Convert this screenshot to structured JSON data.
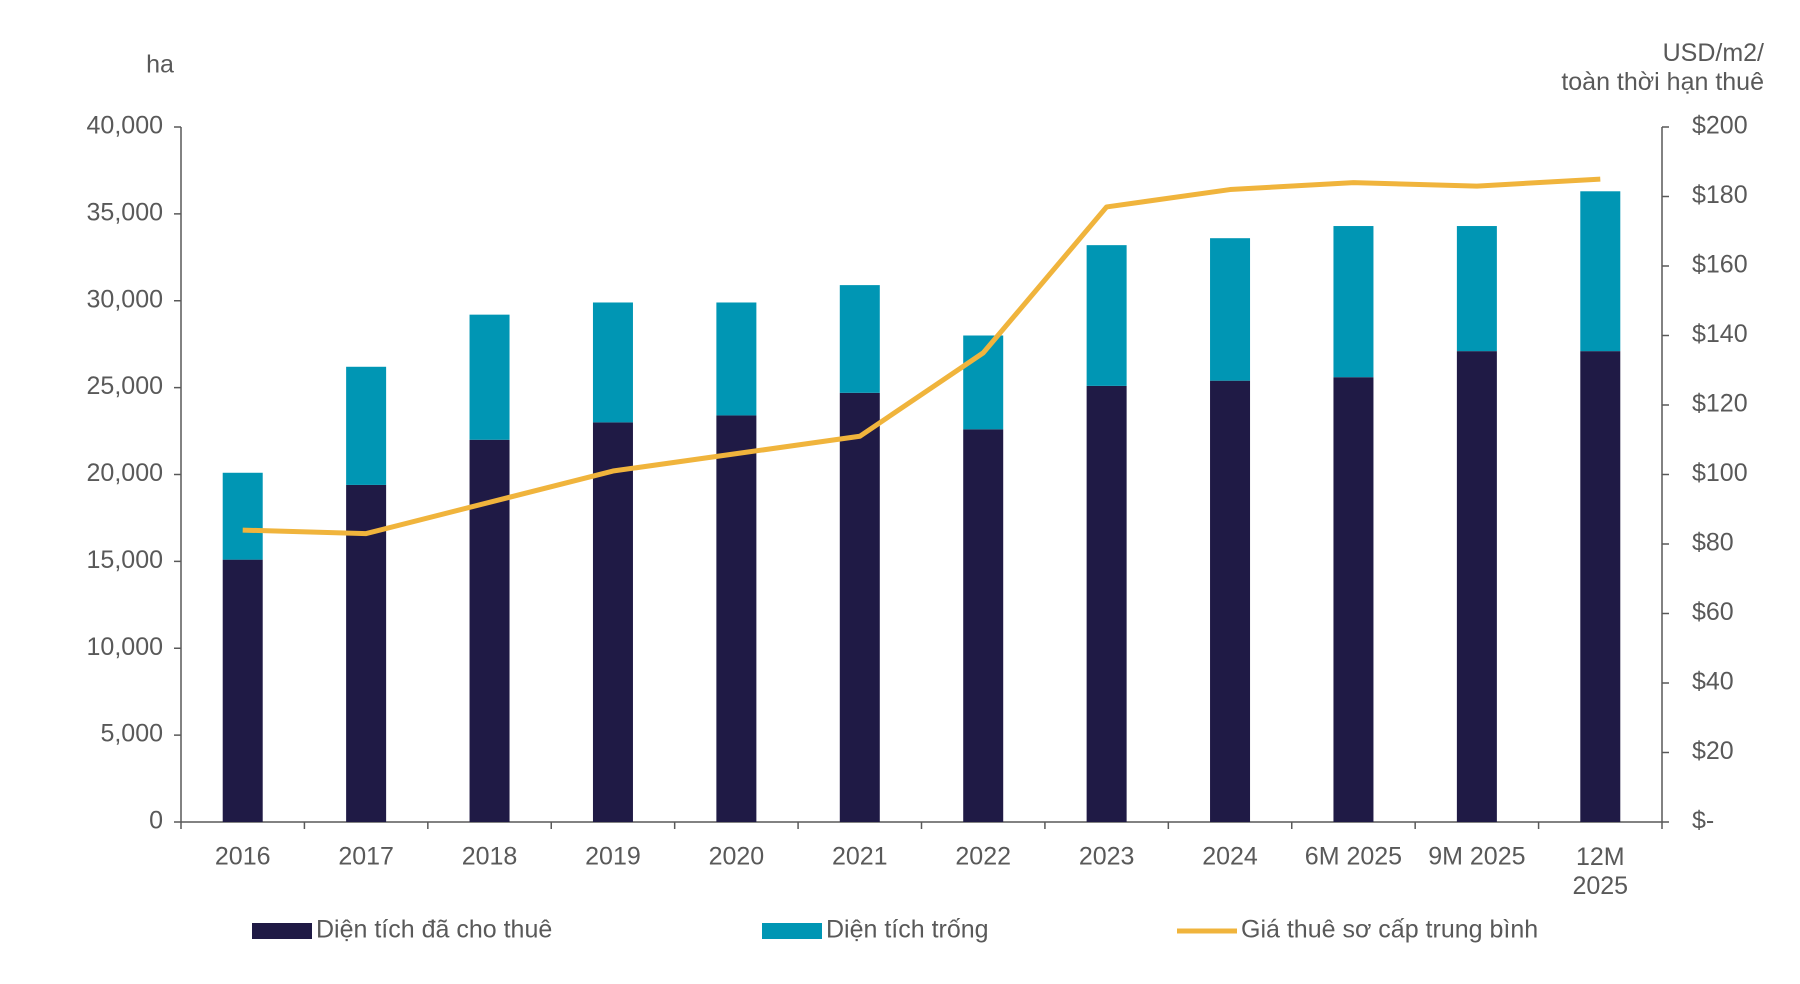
{
  "chart_data": {
    "type": "bar",
    "stacked": true,
    "y_label": "ha",
    "y2_label": "USD/m2/\ntoàn thời hạn thuê",
    "categories": [
      "2016",
      "2017",
      "2018",
      "2019",
      "2020",
      "2021",
      "2022",
      "2023",
      "2024",
      "6M 2025",
      "9M 2025",
      "12M\n2025"
    ],
    "series": [
      {
        "name": "Diện tích đã cho thuê",
        "type": "bar",
        "color": "#1f1a45",
        "values": [
          15100,
          19400,
          22000,
          23000,
          23400,
          24700,
          22600,
          25100,
          25400,
          25600,
          27100,
          27100
        ]
      },
      {
        "name": "Diện tích trống",
        "type": "bar",
        "color": "#0096b4",
        "values": [
          5000,
          6800,
          7200,
          6900,
          6500,
          6200,
          5400,
          8100,
          8200,
          8700,
          7200,
          9200
        ]
      },
      {
        "name": "Giá thuê sơ cấp trung bình",
        "type": "line",
        "axis": "y2",
        "color": "#f0b43c",
        "values": [
          84,
          83,
          92,
          101,
          106,
          111,
          135,
          177,
          182,
          184,
          183,
          185
        ]
      }
    ],
    "ylim": [
      0,
      40000
    ],
    "yticks": [
      0,
      {
        "value": 5000,
        "label": "5,000"
      },
      {
        "value": 10000,
        "label": "10,000"
      },
      {
        "value": 15000,
        "label": "15,000"
      },
      {
        "value": 20000,
        "label": "20,000"
      },
      {
        "value": 25000,
        "label": "25,000"
      },
      {
        "value": 30000,
        "label": "30,000"
      },
      {
        "value": 35000,
        "label": "35,000"
      },
      {
        "value": 40000,
        "label": "40,000"
      }
    ],
    "y2lim": [
      0,
      200
    ],
    "y2ticks": [
      {
        "value": 0,
        "label": "$-"
      },
      {
        "value": 20,
        "label": "$20"
      },
      {
        "value": 40,
        "label": "$40"
      },
      {
        "value": 60,
        "label": "$60"
      },
      {
        "value": 80,
        "label": "$80"
      },
      {
        "value": 100,
        "label": "$100"
      },
      {
        "value": 120,
        "label": "$120"
      },
      {
        "value": 140,
        "label": "$140"
      },
      {
        "value": 160,
        "label": "$160"
      },
      {
        "value": 180,
        "label": "$180"
      },
      {
        "value": 200,
        "label": "$200"
      }
    ],
    "grid": false,
    "legend": "bottom"
  }
}
